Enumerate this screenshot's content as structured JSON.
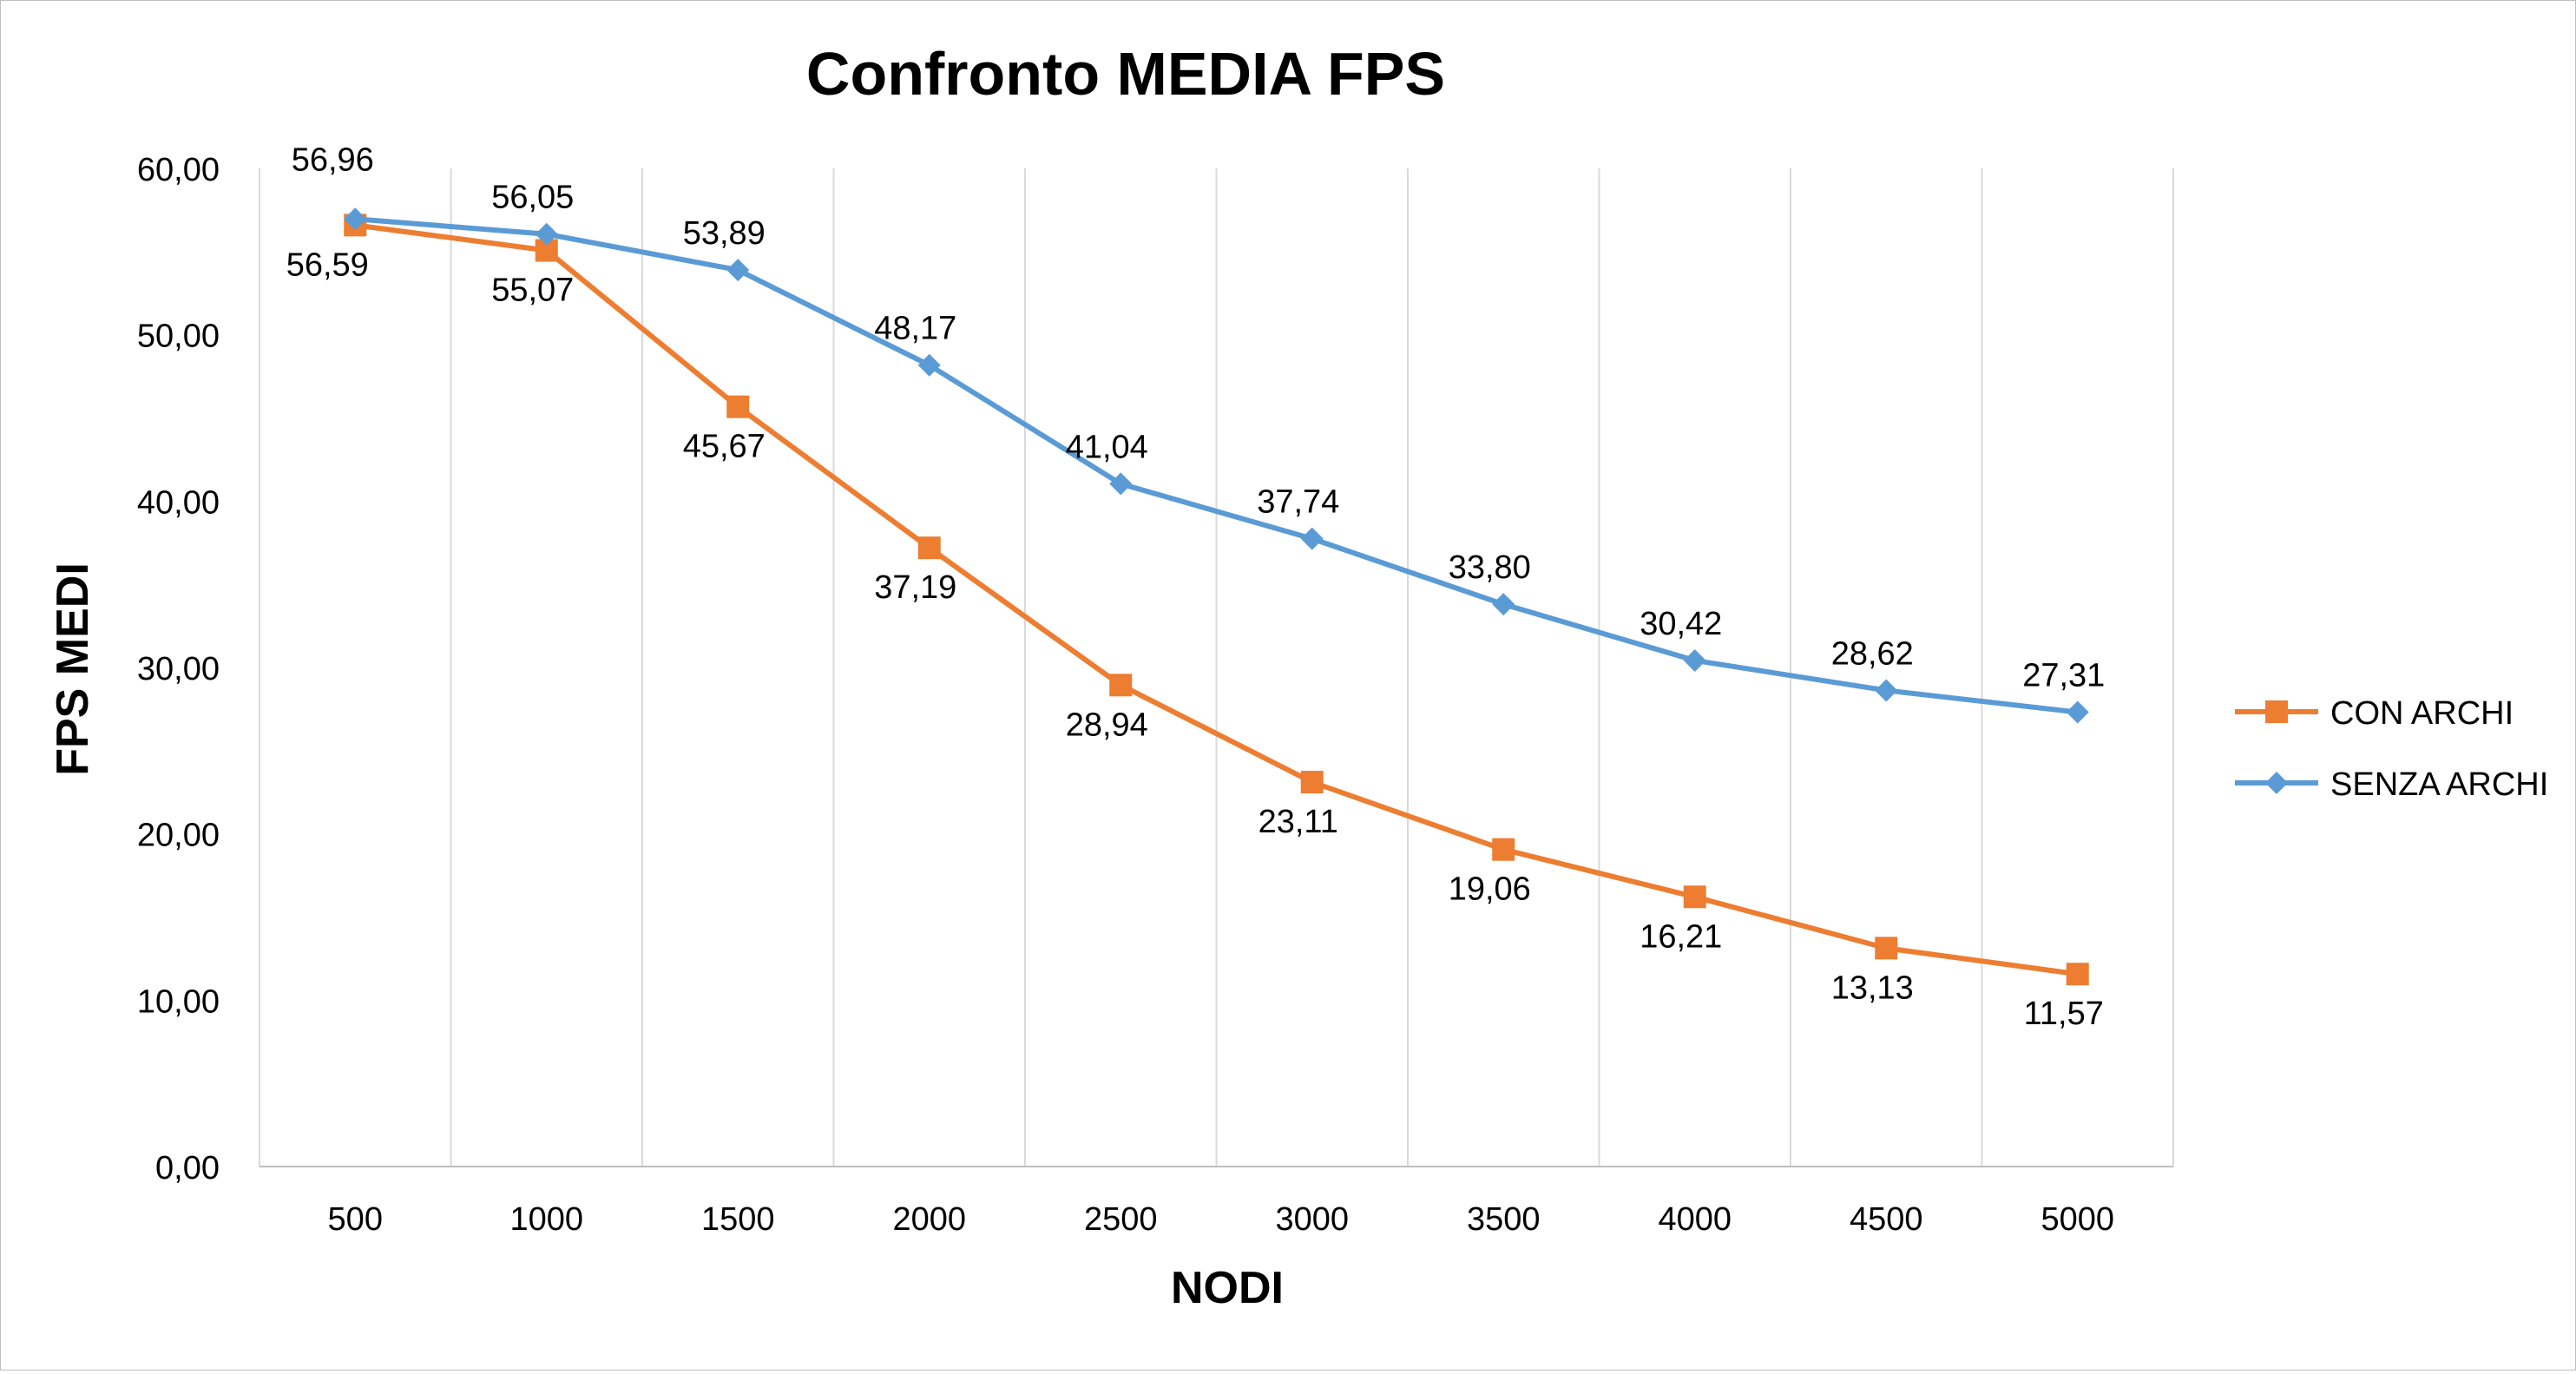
{
  "chart_data": {
    "type": "line",
    "title": "Confronto MEDIA FPS",
    "xlabel": "NODI",
    "ylabel": "FPS MEDI",
    "categories": [
      "500",
      "1000",
      "1500",
      "2000",
      "2500",
      "3000",
      "3500",
      "4000",
      "4500",
      "5000"
    ],
    "y_ticks": [
      "0,00",
      "10,00",
      "20,00",
      "30,00",
      "40,00",
      "50,00",
      "60,00"
    ],
    "ylim": [
      0,
      60
    ],
    "grid": "vertical",
    "legend_position": "right",
    "series": [
      {
        "name": "CON ARCHI",
        "color": "#ED7D31",
        "marker": "square",
        "values": [
          56.59,
          55.07,
          45.67,
          37.19,
          28.94,
          23.11,
          19.06,
          16.21,
          13.13,
          11.57
        ],
        "labels": [
          "56,59",
          "55,07",
          "45,67",
          "37,19",
          "28,94",
          "23,11",
          "19,06",
          "16,21",
          "13,13",
          "11,57"
        ]
      },
      {
        "name": "SENZA ARCHI",
        "color": "#5B9BD5",
        "marker": "diamond",
        "values": [
          56.96,
          56.05,
          53.89,
          48.17,
          41.04,
          37.74,
          33.8,
          30.42,
          28.62,
          27.31
        ],
        "labels": [
          "56,96",
          "56,05",
          "53,89",
          "48,17",
          "41,04",
          "37,74",
          "33,80",
          "30,42",
          "28,62",
          "27,31"
        ]
      }
    ]
  }
}
